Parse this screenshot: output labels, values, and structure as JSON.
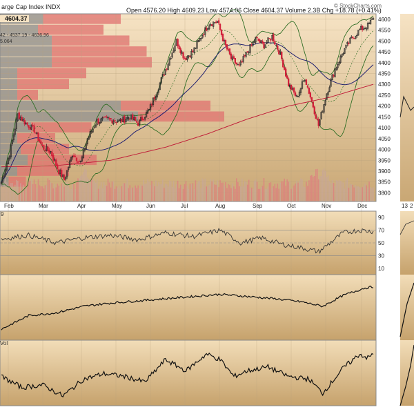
{
  "header": {
    "title": "arge Cap Index INDX",
    "last": "4604.37",
    "ohlc": "Open 4576.20  High 4609.23  Low 4574.06  Close 4604.37  Volume 2.3B  Chg +18.78 (+0.41%)",
    "watermark": "© StockCharts.com"
  },
  "legend_values": [
    "42 - 4537.19 - 4636.96",
    "5.064"
  ],
  "panel_labels": {
    "rsi": "9",
    "ppo": "Vol"
  },
  "colors": {
    "bg_top": "#f6e3c4",
    "bg_bottom": "#c9a774",
    "candle_up": "#222222",
    "candle_down": "#d1203a",
    "ma50": "#202070",
    "ma200": "#c0203a",
    "bollinger": "#2f6e25",
    "volume_by_price_up": "#e0706f",
    "volume_by_price_down": "#8e8e8e"
  },
  "chart_data": [
    {
      "type": "candlestick",
      "title": "arge Cap Index INDX",
      "x_ticks": [
        "Feb",
        "Mar",
        "Apr",
        "May",
        "Jun",
        "Jul",
        "Aug",
        "Sep",
        "Oct",
        "Nov",
        "Dec"
      ],
      "y_ticks": [
        3800,
        3850,
        3900,
        3950,
        4000,
        4050,
        4100,
        4150,
        4200,
        4250,
        4300,
        4350,
        4400,
        4450,
        4500,
        4550,
        4600
      ],
      "ylim": [
        3760,
        4625
      ],
      "anchors": [
        {
          "i": 0,
          "v": 3850
        },
        {
          "i": 6,
          "v": 3980
        },
        {
          "i": 12,
          "v": 4160
        },
        {
          "i": 18,
          "v": 4120
        },
        {
          "i": 24,
          "v": 4090
        },
        {
          "i": 30,
          "v": 4010
        },
        {
          "i": 36,
          "v": 3990
        },
        {
          "i": 42,
          "v": 3900
        },
        {
          "i": 46,
          "v": 3860
        },
        {
          "i": 52,
          "v": 3980
        },
        {
          "i": 58,
          "v": 3940
        },
        {
          "i": 63,
          "v": 4050
        },
        {
          "i": 70,
          "v": 4130
        },
        {
          "i": 78,
          "v": 4140
        },
        {
          "i": 86,
          "v": 4130
        },
        {
          "i": 94,
          "v": 4150
        },
        {
          "i": 100,
          "v": 4120
        },
        {
          "i": 108,
          "v": 4180
        },
        {
          "i": 115,
          "v": 4290
        },
        {
          "i": 122,
          "v": 4400
        },
        {
          "i": 128,
          "v": 4500
        },
        {
          "i": 134,
          "v": 4420
        },
        {
          "i": 140,
          "v": 4450
        },
        {
          "i": 146,
          "v": 4520
        },
        {
          "i": 152,
          "v": 4580
        },
        {
          "i": 158,
          "v": 4590
        },
        {
          "i": 163,
          "v": 4490
        },
        {
          "i": 168,
          "v": 4420
        },
        {
          "i": 174,
          "v": 4380
        },
        {
          "i": 180,
          "v": 4450
        },
        {
          "i": 186,
          "v": 4510
        },
        {
          "i": 192,
          "v": 4480
        },
        {
          "i": 198,
          "v": 4520
        },
        {
          "i": 204,
          "v": 4440
        },
        {
          "i": 210,
          "v": 4300
        },
        {
          "i": 216,
          "v": 4240
        },
        {
          "i": 222,
          "v": 4330
        },
        {
          "i": 228,
          "v": 4200
        },
        {
          "i": 232,
          "v": 4110
        },
        {
          "i": 238,
          "v": 4260
        },
        {
          "i": 244,
          "v": 4370
        },
        {
          "i": 250,
          "v": 4450
        },
        {
          "i": 256,
          "v": 4510
        },
        {
          "i": 262,
          "v": 4550
        },
        {
          "i": 268,
          "v": 4570
        },
        {
          "i": 272,
          "v": 4604
        }
      ],
      "ma200_anchors": [
        {
          "i": 0,
          "v": 3920
        },
        {
          "i": 40,
          "v": 3925
        },
        {
          "i": 80,
          "v": 3950
        },
        {
          "i": 120,
          "v": 4010
        },
        {
          "i": 150,
          "v": 4070
        },
        {
          "i": 180,
          "v": 4140
        },
        {
          "i": 210,
          "v": 4200
        },
        {
          "i": 240,
          "v": 4240
        },
        {
          "i": 272,
          "v": 4300
        }
      ],
      "volume_by_price": [
        {
          "price": 4600,
          "up": 0.45,
          "down": 0.25
        },
        {
          "price": 4550,
          "up": 0.38,
          "down": 0.22
        },
        {
          "price": 4500,
          "up": 0.45,
          "down": 0.3
        },
        {
          "price": 4450,
          "up": 0.55,
          "down": 0.3
        },
        {
          "price": 4400,
          "up": 0.58,
          "down": 0.3
        },
        {
          "price": 4350,
          "up": 0.4,
          "down": 0.1
        },
        {
          "price": 4300,
          "up": 0.3,
          "down": 0.1
        },
        {
          "price": 4250,
          "up": 0.12,
          "down": 0.1
        },
        {
          "price": 4200,
          "up": 0.52,
          "down": 0.7
        },
        {
          "price": 4150,
          "up": 0.5,
          "down": 0.8
        },
        {
          "price": 4100,
          "up": 0.35,
          "down": 0.18
        },
        {
          "price": 4050,
          "up": 0.22,
          "down": 0.1
        },
        {
          "price": 4000,
          "up": 0.28,
          "down": 0.12
        },
        {
          "price": 3950,
          "up": 0.4,
          "down": 0.16
        },
        {
          "price": 3900,
          "up": 0.3,
          "down": 0.1
        },
        {
          "price": 3850,
          "up": 0.1,
          "down": 0.05
        }
      ]
    },
    {
      "type": "line",
      "panel": "rsi",
      "y_ticks": [
        10,
        30,
        50,
        70,
        90
      ],
      "ylim": [
        0,
        100
      ],
      "reference_lines": [
        30,
        50,
        70
      ],
      "anchors": [
        {
          "i": 0,
          "v": 56
        },
        {
          "i": 20,
          "v": 62
        },
        {
          "i": 40,
          "v": 50
        },
        {
          "i": 60,
          "v": 58
        },
        {
          "i": 80,
          "v": 62
        },
        {
          "i": 100,
          "v": 55
        },
        {
          "i": 120,
          "v": 66
        },
        {
          "i": 140,
          "v": 60
        },
        {
          "i": 160,
          "v": 70
        },
        {
          "i": 175,
          "v": 50
        },
        {
          "i": 190,
          "v": 58
        },
        {
          "i": 205,
          "v": 48
        },
        {
          "i": 220,
          "v": 42
        },
        {
          "i": 232,
          "v": 36
        },
        {
          "i": 250,
          "v": 66
        },
        {
          "i": 262,
          "v": 70
        },
        {
          "i": 272,
          "v": 68
        }
      ]
    },
    {
      "type": "line",
      "panel": "mid",
      "anchors": [
        {
          "i": 0,
          "v": 10
        },
        {
          "i": 20,
          "v": 35
        },
        {
          "i": 40,
          "v": 40
        },
        {
          "i": 60,
          "v": 52
        },
        {
          "i": 80,
          "v": 58
        },
        {
          "i": 100,
          "v": 62
        },
        {
          "i": 120,
          "v": 66
        },
        {
          "i": 140,
          "v": 70
        },
        {
          "i": 160,
          "v": 74
        },
        {
          "i": 180,
          "v": 70
        },
        {
          "i": 200,
          "v": 66
        },
        {
          "i": 220,
          "v": 60
        },
        {
          "i": 235,
          "v": 52
        },
        {
          "i": 250,
          "v": 72
        },
        {
          "i": 265,
          "v": 85
        },
        {
          "i": 272,
          "v": 88
        }
      ]
    },
    {
      "type": "line",
      "panel": "ppo",
      "anchors": [
        {
          "i": 0,
          "v": 45
        },
        {
          "i": 15,
          "v": 25
        },
        {
          "i": 30,
          "v": 30
        },
        {
          "i": 45,
          "v": 10
        },
        {
          "i": 60,
          "v": 40
        },
        {
          "i": 75,
          "v": 50
        },
        {
          "i": 90,
          "v": 45
        },
        {
          "i": 105,
          "v": 35
        },
        {
          "i": 120,
          "v": 75
        },
        {
          "i": 135,
          "v": 55
        },
        {
          "i": 150,
          "v": 85
        },
        {
          "i": 160,
          "v": 75
        },
        {
          "i": 170,
          "v": 45
        },
        {
          "i": 180,
          "v": 55
        },
        {
          "i": 195,
          "v": 62
        },
        {
          "i": 210,
          "v": 45
        },
        {
          "i": 225,
          "v": 40
        },
        {
          "i": 235,
          "v": 15
        },
        {
          "i": 250,
          "v": 60
        },
        {
          "i": 262,
          "v": 85
        },
        {
          "i": 268,
          "v": 78
        },
        {
          "i": 272,
          "v": 85
        }
      ]
    }
  ],
  "side_panel": {
    "x_ticks": [
      "13",
      "2"
    ]
  }
}
